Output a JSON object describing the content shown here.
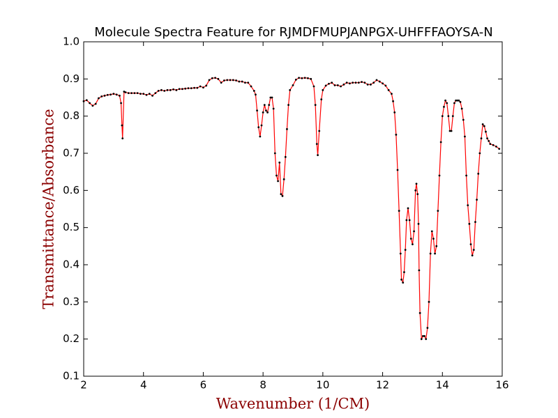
{
  "chart_data": {
    "type": "line",
    "title": "Molecule Spectra Feature for RJMDFMUPJANPGX-UHFFFAOYSA-N",
    "xlabel": "Wavenumber (1/CM)",
    "ylabel": "Transmittance/Absorbance",
    "xlim": [
      2,
      16
    ],
    "ylim": [
      0.1,
      1.0
    ],
    "xticks": [
      2,
      4,
      6,
      8,
      10,
      12,
      14,
      16
    ],
    "yticks": [
      0.1,
      0.2,
      0.3,
      0.4,
      0.5,
      0.6,
      0.7,
      0.8,
      0.9,
      {
        "value": 1.0,
        "label": "1.0"
      }
    ],
    "series": [
      {
        "color": "#ff0000",
        "marker_color": "#000000",
        "x": [
          2.0,
          2.1,
          2.2,
          2.3,
          2.4,
          2.5,
          2.6,
          2.7,
          2.8,
          2.9,
          3.0,
          3.1,
          3.2,
          3.25,
          3.28,
          3.3,
          3.35,
          3.4,
          3.5,
          3.6,
          3.7,
          3.8,
          3.9,
          4.0,
          4.1,
          4.2,
          4.3,
          4.4,
          4.5,
          4.6,
          4.7,
          4.8,
          4.9,
          5.0,
          5.1,
          5.2,
          5.3,
          5.4,
          5.5,
          5.6,
          5.7,
          5.8,
          5.9,
          6.0,
          6.1,
          6.2,
          6.3,
          6.4,
          6.5,
          6.6,
          6.7,
          6.8,
          6.9,
          7.0,
          7.1,
          7.2,
          7.3,
          7.4,
          7.5,
          7.6,
          7.7,
          7.75,
          7.8,
          7.85,
          7.9,
          7.95,
          8.0,
          8.05,
          8.1,
          8.15,
          8.2,
          8.25,
          8.3,
          8.35,
          8.4,
          8.45,
          8.5,
          8.55,
          8.6,
          8.65,
          8.7,
          8.75,
          8.8,
          8.85,
          8.9,
          9.0,
          9.1,
          9.2,
          9.3,
          9.4,
          9.5,
          9.6,
          9.7,
          9.75,
          9.8,
          9.83,
          9.88,
          9.95,
          10.0,
          10.1,
          10.2,
          10.3,
          10.4,
          10.5,
          10.6,
          10.7,
          10.8,
          10.9,
          11.0,
          11.1,
          11.2,
          11.3,
          11.4,
          11.5,
          11.6,
          11.7,
          11.8,
          11.9,
          12.0,
          12.1,
          12.2,
          12.3,
          12.35,
          12.4,
          12.45,
          12.5,
          12.55,
          12.6,
          12.63,
          12.68,
          12.72,
          12.76,
          12.8,
          12.85,
          12.9,
          12.95,
          13.0,
          13.05,
          13.1,
          13.13,
          13.17,
          13.2,
          13.22,
          13.25,
          13.3,
          13.35,
          13.4,
          13.45,
          13.5,
          13.55,
          13.6,
          13.65,
          13.7,
          13.75,
          13.8,
          13.85,
          13.9,
          13.95,
          14.0,
          14.05,
          14.1,
          14.15,
          14.2,
          14.25,
          14.3,
          14.35,
          14.4,
          14.45,
          14.5,
          14.55,
          14.6,
          14.65,
          14.7,
          14.75,
          14.8,
          14.85,
          14.9,
          14.95,
          15.0,
          15.05,
          15.1,
          15.15,
          15.2,
          15.25,
          15.3,
          15.35,
          15.4,
          15.45,
          15.5,
          15.55,
          15.6,
          15.7,
          15.8,
          15.9
        ],
        "values": [
          0.84,
          0.843,
          0.835,
          0.828,
          0.833,
          0.848,
          0.853,
          0.855,
          0.857,
          0.858,
          0.86,
          0.858,
          0.855,
          0.835,
          0.775,
          0.74,
          0.866,
          0.864,
          0.862,
          0.862,
          0.862,
          0.862,
          0.86,
          0.86,
          0.857,
          0.86,
          0.855,
          0.862,
          0.868,
          0.87,
          0.868,
          0.87,
          0.87,
          0.872,
          0.87,
          0.873,
          0.873,
          0.874,
          0.875,
          0.875,
          0.876,
          0.876,
          0.88,
          0.877,
          0.882,
          0.897,
          0.902,
          0.903,
          0.9,
          0.89,
          0.896,
          0.897,
          0.897,
          0.897,
          0.896,
          0.893,
          0.893,
          0.89,
          0.89,
          0.88,
          0.868,
          0.858,
          0.815,
          0.77,
          0.745,
          0.775,
          0.81,
          0.83,
          0.815,
          0.81,
          0.83,
          0.85,
          0.85,
          0.82,
          0.7,
          0.64,
          0.625,
          0.675,
          0.59,
          0.585,
          0.63,
          0.69,
          0.765,
          0.83,
          0.87,
          0.883,
          0.898,
          0.903,
          0.902,
          0.903,
          0.902,
          0.9,
          0.88,
          0.83,
          0.725,
          0.695,
          0.76,
          0.845,
          0.87,
          0.882,
          0.887,
          0.89,
          0.883,
          0.883,
          0.88,
          0.885,
          0.89,
          0.888,
          0.89,
          0.89,
          0.89,
          0.892,
          0.89,
          0.885,
          0.885,
          0.89,
          0.897,
          0.893,
          0.888,
          0.882,
          0.87,
          0.86,
          0.84,
          0.81,
          0.75,
          0.655,
          0.545,
          0.43,
          0.36,
          0.352,
          0.38,
          0.44,
          0.52,
          0.552,
          0.52,
          0.47,
          0.455,
          0.49,
          0.6,
          0.618,
          0.59,
          0.51,
          0.385,
          0.27,
          0.2,
          0.208,
          0.208,
          0.2,
          0.23,
          0.3,
          0.43,
          0.49,
          0.47,
          0.43,
          0.45,
          0.545,
          0.64,
          0.73,
          0.8,
          0.825,
          0.842,
          0.835,
          0.8,
          0.76,
          0.76,
          0.8,
          0.835,
          0.842,
          0.842,
          0.842,
          0.838,
          0.82,
          0.79,
          0.745,
          0.64,
          0.56,
          0.51,
          0.455,
          0.425,
          0.44,
          0.515,
          0.575,
          0.645,
          0.7,
          0.74,
          0.778,
          0.773,
          0.758,
          0.74,
          0.733,
          0.725,
          0.722,
          0.718,
          0.712
        ]
      }
    ]
  }
}
